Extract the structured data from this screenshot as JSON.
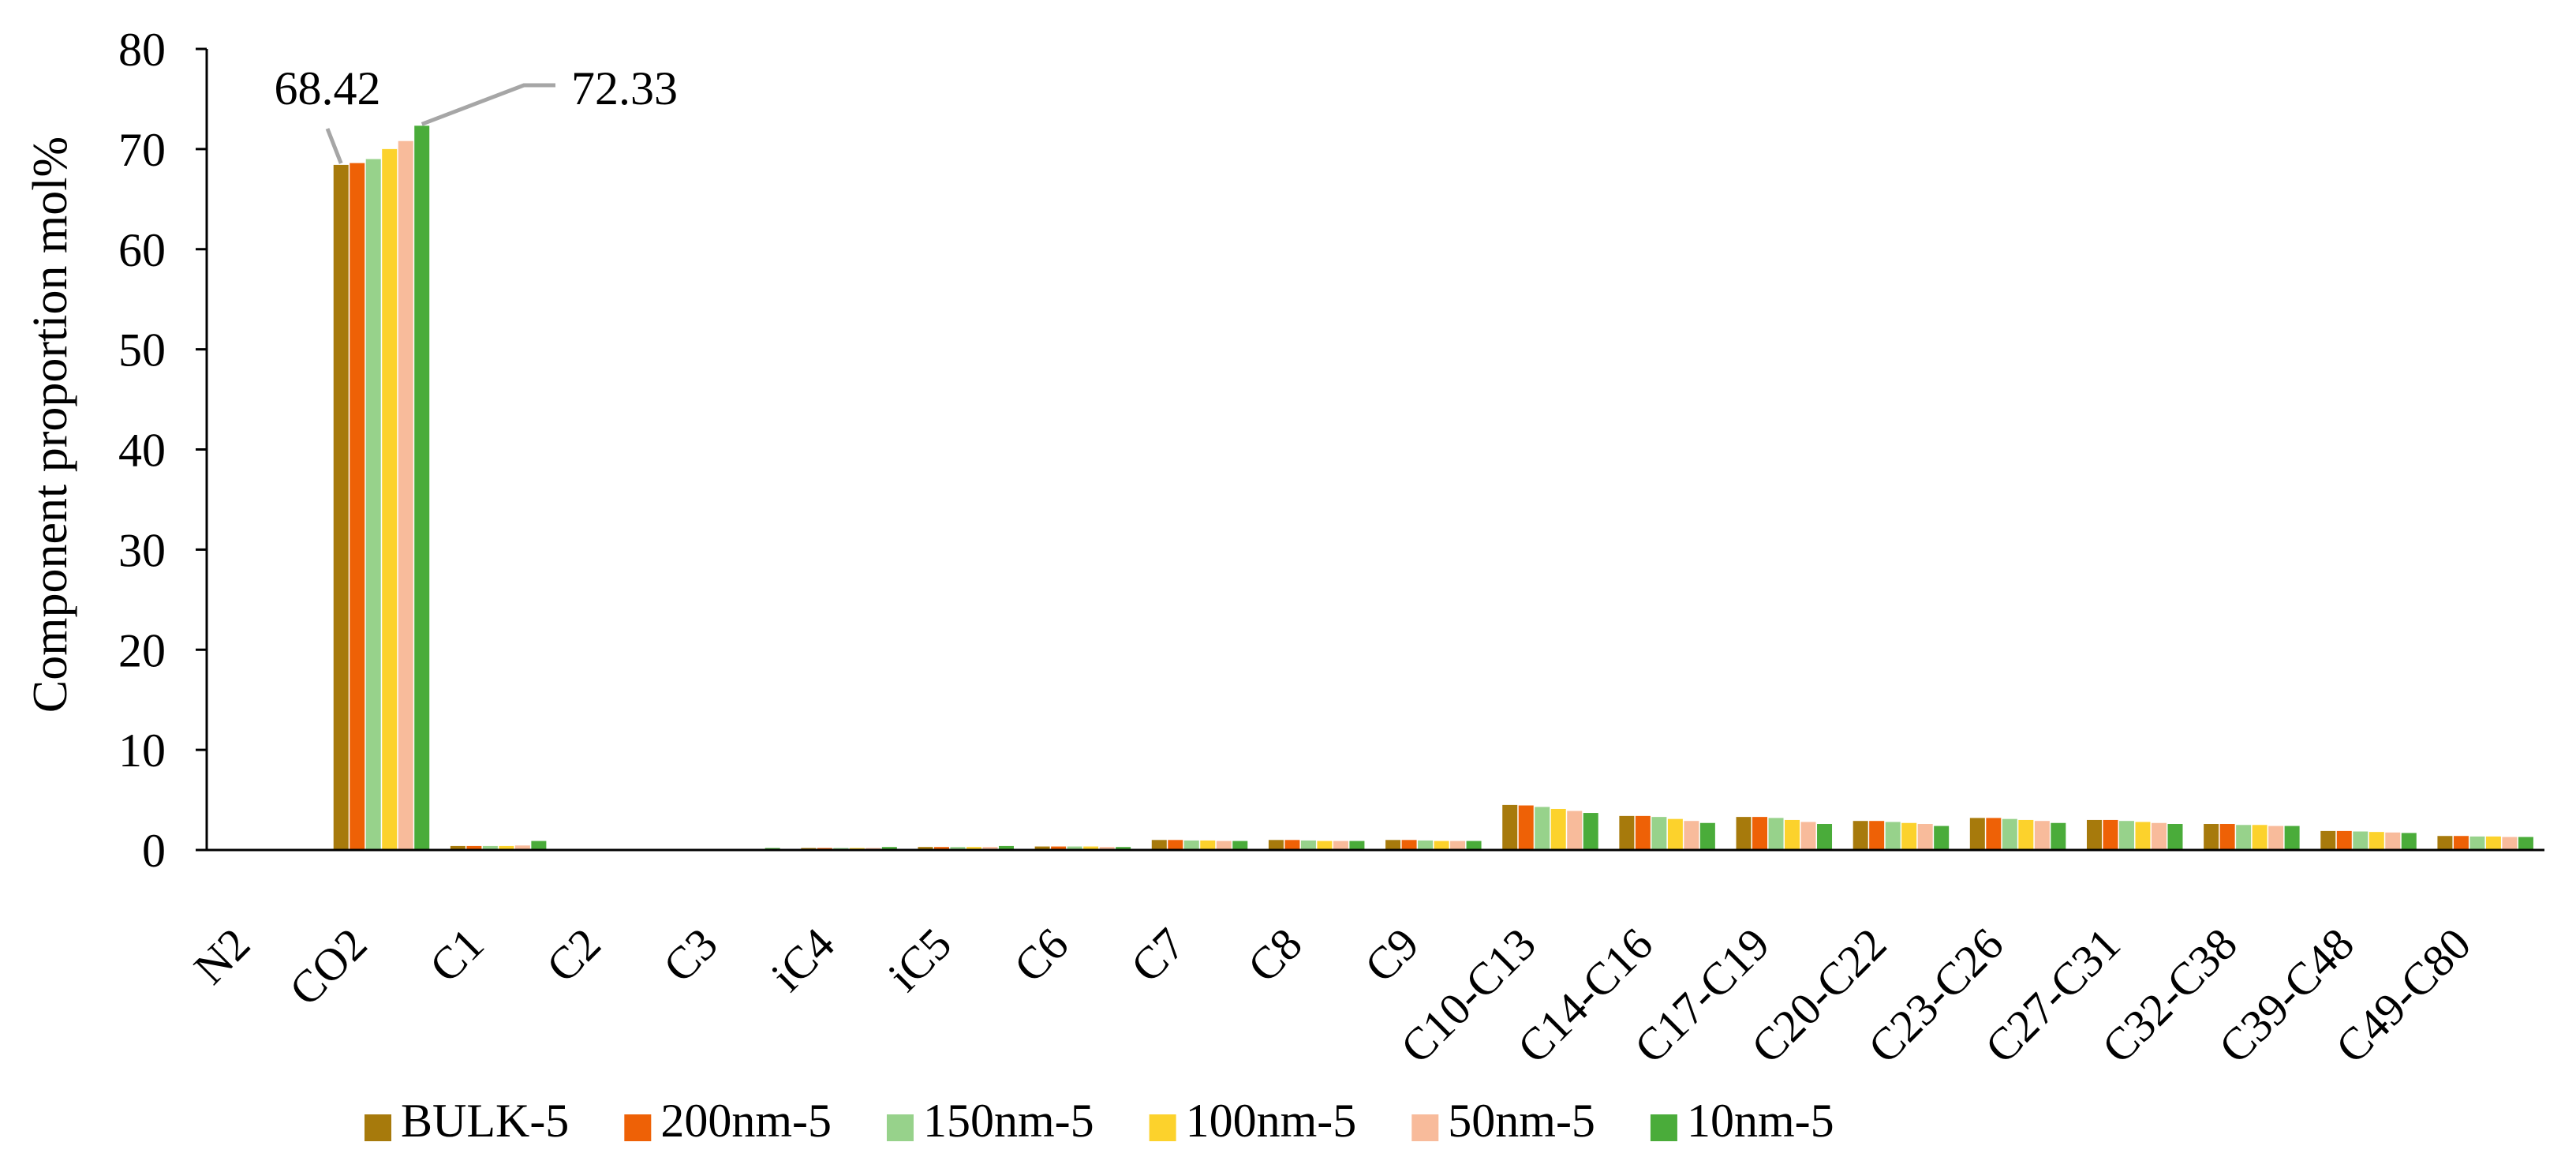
{
  "chart_data": {
    "type": "bar",
    "title": "",
    "xlabel": "",
    "ylabel": "Component proportion  mol%",
    "ylim": [
      0,
      80
    ],
    "yticks": [
      0,
      10,
      20,
      30,
      40,
      50,
      60,
      70,
      80
    ],
    "grid": false,
    "legend_position": "bottom",
    "categories": [
      "N2",
      "CO2",
      "C1",
      "C2",
      "C3",
      "iC4",
      "iC5",
      "C6",
      "C7",
      "C8",
      "C9",
      "C10-C13",
      "C14-C16",
      "C17-C19",
      "C20-C22",
      "C23-C26",
      "C27-C31",
      "C32-C38",
      "C39-C48",
      "C49-C80"
    ],
    "series": [
      {
        "name": "BULK-5",
        "color": "#a77a0c",
        "values": [
          0,
          68.42,
          0.4,
          0.05,
          0.1,
          0.2,
          0.3,
          0.35,
          1.0,
          1.0,
          1.0,
          4.5,
          3.4,
          3.3,
          2.9,
          3.2,
          3.0,
          2.6,
          1.9,
          1.4
        ]
      },
      {
        "name": "200nm-5",
        "color": "#ee6106",
        "values": [
          0,
          68.6,
          0.4,
          0.05,
          0.1,
          0.2,
          0.3,
          0.35,
          1.0,
          1.0,
          1.0,
          4.45,
          3.4,
          3.3,
          2.9,
          3.2,
          3.0,
          2.6,
          1.9,
          1.4
        ]
      },
      {
        "name": "150nm-5",
        "color": "#97d28b",
        "values": [
          0,
          69.0,
          0.4,
          0.05,
          0.1,
          0.2,
          0.3,
          0.35,
          0.95,
          0.95,
          0.95,
          4.3,
          3.3,
          3.2,
          2.8,
          3.1,
          2.9,
          2.5,
          1.85,
          1.35
        ]
      },
      {
        "name": "100nm-5",
        "color": "#fcd22c",
        "values": [
          0,
          70.0,
          0.4,
          0.05,
          0.1,
          0.2,
          0.3,
          0.35,
          0.95,
          0.9,
          0.9,
          4.1,
          3.1,
          3.0,
          2.7,
          3.0,
          2.8,
          2.5,
          1.8,
          1.35
        ]
      },
      {
        "name": "50nm-5",
        "color": "#f8bb9b",
        "values": [
          0,
          70.8,
          0.45,
          0.05,
          0.1,
          0.2,
          0.3,
          0.3,
          0.9,
          0.9,
          0.9,
          3.9,
          2.9,
          2.8,
          2.6,
          2.9,
          2.7,
          2.4,
          1.75,
          1.3
        ]
      },
      {
        "name": "10nm-5",
        "color": "#4aac3a",
        "values": [
          0,
          72.33,
          0.9,
          0.1,
          0.2,
          0.3,
          0.4,
          0.3,
          0.9,
          0.9,
          0.9,
          3.7,
          2.7,
          2.6,
          2.4,
          2.7,
          2.6,
          2.4,
          1.7,
          1.3
        ]
      }
    ],
    "annotations": [
      {
        "text": "68.42",
        "series": "BULK-5",
        "category": "CO2"
      },
      {
        "text": "72.33",
        "series": "10nm-5",
        "category": "CO2"
      }
    ]
  }
}
